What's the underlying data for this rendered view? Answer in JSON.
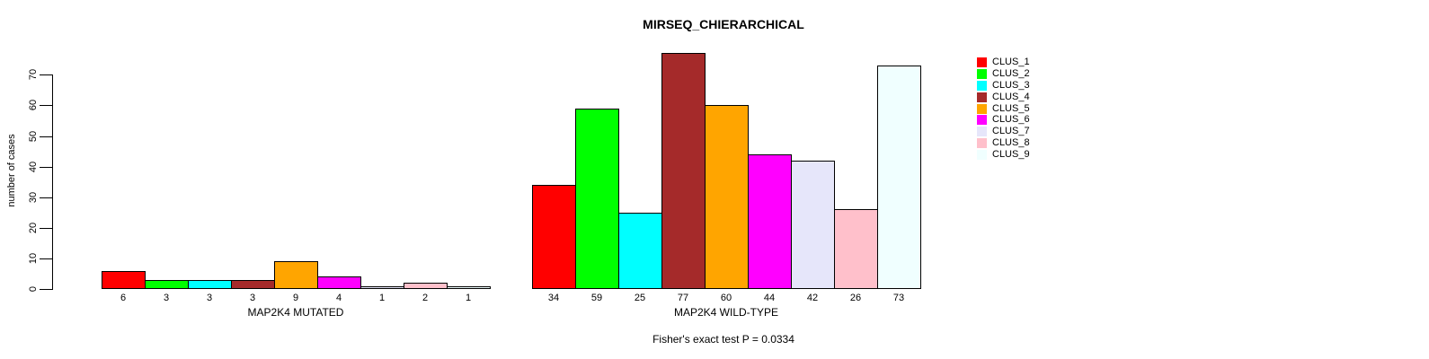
{
  "title": "MIRSEQ_CHIERARCHICAL",
  "y_axis_label": "number of cases",
  "footer": "Fisher's exact test P = 0.0334",
  "chart_data": {
    "type": "bar",
    "title": "MIRSEQ_CHIERARCHICAL",
    "xlabel": "",
    "ylabel": "number of cases",
    "ylim": [
      0,
      77
    ],
    "y_ticks": [
      0,
      10,
      20,
      30,
      40,
      50,
      60,
      70
    ],
    "grid": false,
    "legend_position": "top-right",
    "series_names": [
      "CLUS_1",
      "CLUS_2",
      "CLUS_3",
      "CLUS_4",
      "CLUS_5",
      "CLUS_6",
      "CLUS_7",
      "CLUS_8",
      "CLUS_9"
    ],
    "colors": [
      "#FF0000",
      "#00FF00",
      "#00FFFF",
      "#A52A2A",
      "#FFA500",
      "#FF00FF",
      "#E6E6FA",
      "#FFC0CB",
      "#F0FFFF"
    ],
    "bar_border_color": "#000000",
    "groups": [
      {
        "label": "MAP2K4 MUTATED",
        "values": [
          6,
          3,
          3,
          3,
          9,
          4,
          1,
          2,
          1
        ]
      },
      {
        "label": "MAP2K4 WILD-TYPE",
        "values": [
          34,
          59,
          25,
          77,
          60,
          44,
          42,
          26,
          73
        ]
      }
    ],
    "annotation": "Fisher's exact test P = 0.0334"
  }
}
